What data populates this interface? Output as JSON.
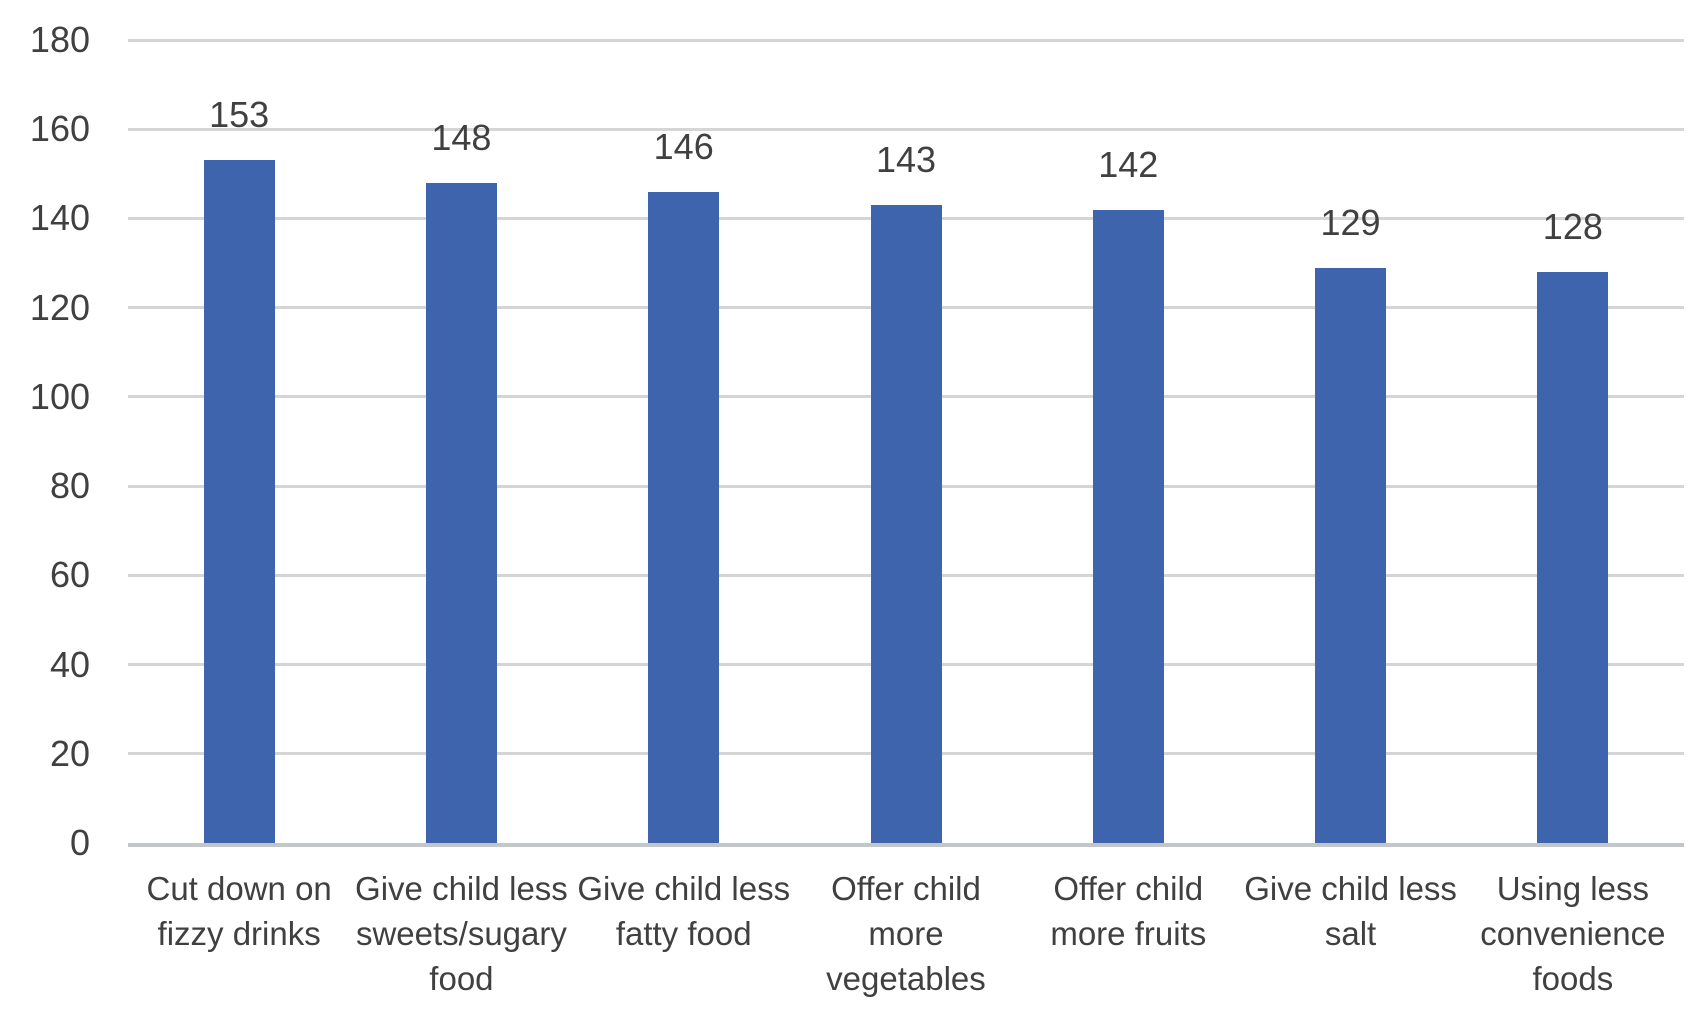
{
  "chart_data": {
    "type": "bar",
    "title": "",
    "xlabel": "",
    "ylabel": "",
    "categories": [
      "Cut down on fizzy drinks",
      "Give child less sweets/sugary food",
      "Give child less fatty food",
      "Offer child more vegetables",
      "Offer child more fruits",
      "Give child less salt",
      "Using less convenience foods"
    ],
    "category_lines": [
      [
        "Cut down on",
        "fizzy drinks"
      ],
      [
        "Give child less",
        "sweets/sugary",
        "food"
      ],
      [
        "Give child less",
        "fatty food"
      ],
      [
        "Offer child",
        "more",
        "vegetables"
      ],
      [
        "Offer child",
        "more fruits"
      ],
      [
        "Give child less",
        "salt"
      ],
      [
        "Using less",
        "convenience",
        "foods"
      ]
    ],
    "values": [
      153,
      148,
      146,
      143,
      142,
      129,
      128
    ],
    "show_data_labels": true,
    "yticks": [
      0,
      20,
      40,
      60,
      80,
      100,
      120,
      140,
      160,
      180
    ],
    "ylim": [
      0,
      180
    ],
    "grid": "horizontal",
    "legend": "none",
    "colors": {
      "bar": "#3E64AD",
      "gridline": "#D5D5D5",
      "axis_line": "#C3C6C9",
      "text": "#404040",
      "background": "#FFFFFF"
    }
  }
}
